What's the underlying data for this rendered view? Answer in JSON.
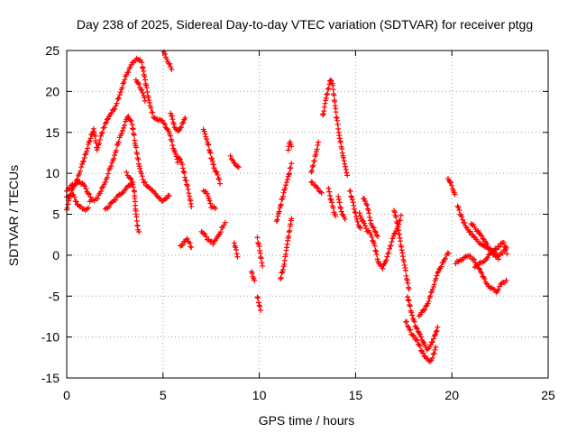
{
  "chart_data": {
    "type": "scatter",
    "title": "Day 238 of 2025, Sidereal Day-to-day VTEC variation (SDTVAR) for receiver ptgg",
    "xlabel": "GPS time / hours",
    "ylabel": "SDTVAR / TECUs",
    "xlim": [
      0,
      25
    ],
    "ylim": [
      -15,
      25
    ],
    "x_ticks": [
      "0",
      "5",
      "10",
      "15",
      "20",
      "25"
    ],
    "y_ticks": [
      "25",
      "20",
      "15",
      "10",
      "5",
      "0",
      "-5",
      "-10",
      "-15"
    ],
    "grid": true,
    "marker": "plus",
    "series": [
      {
        "name": "SDTVAR",
        "color": "#ff0000",
        "tracks": [
          [
            [
              0.0,
              5.5
            ],
            [
              0.2,
              7.5
            ],
            [
              0.5,
              9
            ],
            [
              0.8,
              11
            ],
            [
              1.0,
              12.5
            ],
            [
              1.2,
              14
            ],
            [
              1.4,
              15.5
            ],
            [
              1.5,
              14
            ],
            [
              1.6,
              12.5
            ]
          ],
          [
            [
              1.6,
              13
            ],
            [
              1.9,
              15.5
            ],
            [
              2.2,
              17
            ],
            [
              2.5,
              18
            ],
            [
              2.8,
              20
            ],
            [
              3.1,
              22
            ],
            [
              3.4,
              23.5
            ],
            [
              3.7,
              24
            ],
            [
              3.9,
              23.5
            ],
            [
              4.1,
              21
            ],
            [
              4.3,
              18.5
            ],
            [
              4.5,
              17
            ],
            [
              4.7,
              16.5
            ],
            [
              4.9,
              16.5
            ],
            [
              5.1,
              16
            ],
            [
              5.3,
              15
            ],
            [
              5.5,
              13.5
            ],
            [
              5.7,
              12
            ],
            [
              5.8,
              11
            ]
          ],
          [
            [
              1.2,
              6.5
            ],
            [
              1.6,
              7
            ],
            [
              2.0,
              9
            ],
            [
              2.4,
              11.5
            ],
            [
              2.7,
              14
            ],
            [
              3.0,
              16
            ],
            [
              3.2,
              17
            ],
            [
              3.4,
              16
            ],
            [
              3.6,
              13
            ],
            [
              3.8,
              10.5
            ],
            [
              4.0,
              9
            ],
            [
              4.2,
              8.5
            ],
            [
              4.4,
              8
            ],
            [
              4.6,
              7.5
            ],
            [
              4.8,
              7
            ],
            [
              5.0,
              6.5
            ],
            [
              5.2,
              7
            ],
            [
              5.4,
              7.5
            ]
          ],
          [
            [
              0.0,
              8
            ],
            [
              0.3,
              8.5
            ],
            [
              0.6,
              9
            ],
            [
              0.9,
              8.5
            ],
            [
              1.1,
              7.5
            ],
            [
              1.3,
              7
            ]
          ],
          [
            [
              0.0,
              7
            ],
            [
              0.3,
              7.5
            ],
            [
              0.6,
              6
            ],
            [
              0.9,
              5.5
            ],
            [
              1.2,
              6
            ]
          ],
          [
            [
              2.0,
              5.5
            ],
            [
              2.4,
              6.5
            ],
            [
              2.8,
              7.5
            ],
            [
              3.2,
              8.5
            ],
            [
              3.5,
              9
            ]
          ],
          [
            [
              3.1,
              10
            ],
            [
              3.3,
              9.5
            ],
            [
              3.5,
              8
            ],
            [
              3.6,
              5
            ],
            [
              3.7,
              3
            ],
            [
              3.8,
              2.5
            ]
          ],
          [
            [
              3.6,
              21.5
            ],
            [
              3.8,
              20.5
            ],
            [
              4.0,
              19.5
            ],
            [
              4.1,
              18.5
            ]
          ],
          [
            [
              5.0,
              25
            ],
            [
              5.3,
              23.5
            ],
            [
              5.5,
              22.5
            ]
          ],
          [
            [
              5.4,
              17.5
            ],
            [
              5.6,
              15.5
            ],
            [
              5.8,
              15
            ],
            [
              6.0,
              16
            ],
            [
              6.2,
              17
            ]
          ],
          [
            [
              5.9,
              1
            ],
            [
              6.2,
              2
            ],
            [
              6.4,
              1.5
            ],
            [
              6.5,
              0.5
            ]
          ],
          [
            [
              5.8,
              12
            ],
            [
              6.0,
              11
            ],
            [
              6.2,
              9
            ],
            [
              6.4,
              7
            ],
            [
              6.5,
              5.5
            ]
          ],
          [
            [
              7.1,
              15.5
            ],
            [
              7.3,
              14
            ],
            [
              7.5,
              12
            ],
            [
              7.7,
              10.5
            ]
          ],
          [
            [
              7.0,
              3
            ],
            [
              7.3,
              2
            ],
            [
              7.6,
              1.5
            ],
            [
              7.9,
              2.5
            ],
            [
              8.1,
              3.5
            ],
            [
              8.3,
              4
            ]
          ],
          [
            [
              7.6,
              11
            ],
            [
              7.8,
              10
            ],
            [
              8.0,
              8.5
            ]
          ],
          [
            [
              7.1,
              8
            ],
            [
              7.3,
              7.5
            ],
            [
              7.5,
              6
            ],
            [
              7.8,
              5.5
            ]
          ],
          [
            [
              8.5,
              12
            ],
            [
              8.8,
              11
            ],
            [
              9.0,
              10.5
            ]
          ],
          [
            [
              8.7,
              1.5
            ],
            [
              8.8,
              0.5
            ],
            [
              8.9,
              -0.5
            ]
          ],
          [
            [
              9.6,
              -2
            ],
            [
              9.7,
              -3
            ],
            [
              9.8,
              -3.5
            ]
          ],
          [
            [
              9.9,
              2
            ],
            [
              10.0,
              1
            ],
            [
              10.1,
              -0.5
            ],
            [
              10.2,
              -1.5
            ]
          ],
          [
            [
              9.9,
              -5
            ],
            [
              10.0,
              -6
            ],
            [
              10.1,
              -7
            ]
          ],
          [
            [
              11.1,
              -3
            ],
            [
              11.3,
              -1
            ],
            [
              11.5,
              2
            ],
            [
              11.7,
              5
            ]
          ],
          [
            [
              10.9,
              4
            ],
            [
              11.1,
              6
            ],
            [
              11.3,
              8
            ],
            [
              11.5,
              9.5
            ],
            [
              11.7,
              11.5
            ]
          ],
          [
            [
              11.5,
              13
            ],
            [
              11.6,
              14
            ],
            [
              11.7,
              13
            ]
          ],
          [
            [
              12.7,
              10
            ],
            [
              12.9,
              12
            ],
            [
              13.1,
              14
            ]
          ],
          [
            [
              12.7,
              9
            ],
            [
              12.9,
              8.5
            ],
            [
              13.1,
              8
            ],
            [
              13.3,
              7.5
            ]
          ],
          [
            [
              13.3,
              17
            ],
            [
              13.5,
              19.5
            ],
            [
              13.7,
              21.5
            ],
            [
              13.8,
              21
            ],
            [
              14.0,
              17
            ],
            [
              14.2,
              14
            ],
            [
              14.4,
              11.5
            ],
            [
              14.6,
              9.5
            ]
          ],
          [
            [
              13.6,
              8
            ],
            [
              13.8,
              6
            ],
            [
              14.0,
              4.5
            ]
          ],
          [
            [
              14.1,
              7
            ],
            [
              14.3,
              5
            ],
            [
              14.5,
              4
            ]
          ],
          [
            [
              14.7,
              8
            ],
            [
              14.9,
              6
            ],
            [
              15.1,
              4
            ],
            [
              15.3,
              3
            ]
          ],
          [
            [
              15.2,
              5
            ],
            [
              15.4,
              4
            ],
            [
              15.6,
              3
            ],
            [
              15.8,
              2.5
            ],
            [
              16.0,
              1
            ],
            [
              16.2,
              -1
            ],
            [
              16.4,
              -1.5
            ],
            [
              16.6,
              -0.5
            ],
            [
              16.8,
              1
            ],
            [
              17.0,
              2.5
            ],
            [
              17.2,
              3.5
            ],
            [
              17.4,
              5
            ]
          ],
          [
            [
              15.4,
              7
            ],
            [
              15.6,
              6
            ],
            [
              15.8,
              4
            ],
            [
              16.0,
              3
            ],
            [
              16.2,
              2
            ]
          ],
          [
            [
              17.0,
              5.5
            ],
            [
              17.2,
              3.5
            ],
            [
              17.4,
              0.5
            ],
            [
              17.6,
              -2
            ],
            [
              17.8,
              -4.5
            ]
          ],
          [
            [
              17.7,
              -5
            ],
            [
              17.9,
              -7
            ],
            [
              18.1,
              -8.5
            ],
            [
              18.3,
              -9.5
            ],
            [
              18.5,
              -10.5
            ],
            [
              18.7,
              -11.5
            ],
            [
              18.9,
              -11
            ],
            [
              19.1,
              -10
            ],
            [
              19.3,
              -8.5
            ]
          ],
          [
            [
              17.6,
              -8
            ],
            [
              17.9,
              -9.5
            ],
            [
              18.2,
              -10.5
            ],
            [
              18.5,
              -12
            ],
            [
              18.8,
              -13
            ],
            [
              19.0,
              -12.5
            ],
            [
              19.2,
              -11
            ]
          ],
          [
            [
              18.3,
              -7.5
            ],
            [
              18.6,
              -6.5
            ],
            [
              18.8,
              -5.5
            ],
            [
              19.0,
              -4
            ],
            [
              19.3,
              -2
            ],
            [
              19.6,
              -0.5
            ],
            [
              19.9,
              0.5
            ]
          ],
          [
            [
              19.8,
              9.5
            ],
            [
              20.0,
              8.5
            ],
            [
              20.2,
              7
            ]
          ],
          [
            [
              20.2,
              -1
            ],
            [
              20.5,
              -0.5
            ],
            [
              20.8,
              0
            ],
            [
              21.1,
              -0.5
            ],
            [
              21.4,
              -1.5
            ],
            [
              21.7,
              -3
            ],
            [
              22.0,
              -4
            ],
            [
              22.3,
              -4.5
            ],
            [
              22.6,
              -3.5
            ],
            [
              22.9,
              -3
            ]
          ],
          [
            [
              20.3,
              6
            ],
            [
              20.6,
              4
            ],
            [
              20.9,
              3
            ],
            [
              21.2,
              2
            ],
            [
              21.5,
              1.5
            ],
            [
              21.8,
              1
            ],
            [
              22.1,
              0.5
            ],
            [
              22.4,
              0
            ],
            [
              22.7,
              0.5
            ],
            [
              22.9,
              1
            ]
          ],
          [
            [
              21.0,
              4
            ],
            [
              21.3,
              3
            ],
            [
              21.6,
              2
            ],
            [
              21.9,
              1
            ],
            [
              22.2,
              0
            ],
            [
              22.5,
              -0.5
            ]
          ],
          [
            [
              21.2,
              -1.5
            ],
            [
              21.5,
              -1
            ],
            [
              21.8,
              -0.5
            ],
            [
              22.1,
              0.5
            ],
            [
              22.4,
              1
            ],
            [
              22.7,
              1.5
            ],
            [
              22.9,
              0
            ]
          ]
        ]
      }
    ]
  }
}
